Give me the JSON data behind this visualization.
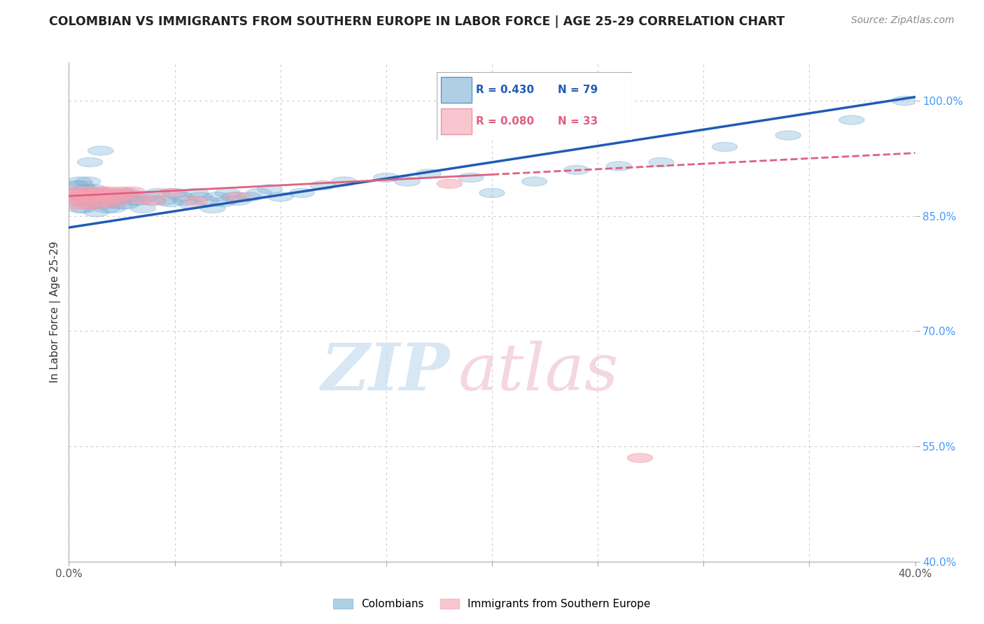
{
  "title": "COLOMBIAN VS IMMIGRANTS FROM SOUTHERN EUROPE IN LABOR FORCE | AGE 25-29 CORRELATION CHART",
  "source": "Source: ZipAtlas.com",
  "ylabel": "In Labor Force | Age 25-29",
  "xlim": [
    0.0,
    0.4
  ],
  "ylim": [
    0.4,
    1.05
  ],
  "xtick_positions": [
    0.0,
    0.05,
    0.1,
    0.15,
    0.2,
    0.25,
    0.3,
    0.35,
    0.4
  ],
  "xticklabels": [
    "0.0%",
    "",
    "",
    "",
    "",
    "",
    "",
    "",
    "40.0%"
  ],
  "ytick_positions": [
    0.4,
    0.55,
    0.7,
    0.85,
    1.0
  ],
  "yticklabels": [
    "40.0%",
    "55.0%",
    "70.0%",
    "85.0%",
    "100.0%"
  ],
  "blue_color": "#7BAFD4",
  "pink_color": "#F4A0B0",
  "blue_line_color": "#1F5BB5",
  "pink_line_color": "#E06080",
  "legend_r_blue": "R = 0.430",
  "legend_n_blue": "N = 79",
  "legend_r_pink": "R = 0.080",
  "legend_n_pink": "N = 33",
  "legend_label_blue": "Colombians",
  "legend_label_pink": "Immigrants from Southern Europe",
  "blue_trend_x": [
    0.0,
    0.4
  ],
  "blue_trend_y": [
    0.835,
    1.005
  ],
  "pink_trend_x": [
    0.0,
    0.4
  ],
  "pink_trend_y": [
    0.876,
    0.932
  ],
  "blue_x": [
    0.002,
    0.003,
    0.004,
    0.005,
    0.005,
    0.006,
    0.006,
    0.007,
    0.007,
    0.008,
    0.008,
    0.009,
    0.01,
    0.01,
    0.011,
    0.012,
    0.012,
    0.013,
    0.013,
    0.014,
    0.015,
    0.015,
    0.016,
    0.017,
    0.018,
    0.019,
    0.02,
    0.021,
    0.022,
    0.023,
    0.024,
    0.025,
    0.026,
    0.027,
    0.028,
    0.03,
    0.031,
    0.033,
    0.035,
    0.037,
    0.04,
    0.042,
    0.045,
    0.048,
    0.05,
    0.053,
    0.055,
    0.058,
    0.06,
    0.062,
    0.065,
    0.068,
    0.07,
    0.073,
    0.075,
    0.078,
    0.08,
    0.085,
    0.09,
    0.095,
    0.1,
    0.11,
    0.12,
    0.13,
    0.15,
    0.16,
    0.17,
    0.19,
    0.2,
    0.22,
    0.24,
    0.26,
    0.28,
    0.31,
    0.34,
    0.37,
    0.395,
    0.01,
    0.015
  ],
  "blue_y": [
    0.88,
    0.89,
    0.87,
    0.895,
    0.86,
    0.87,
    0.89,
    0.875,
    0.86,
    0.885,
    0.87,
    0.895,
    0.865,
    0.88,
    0.87,
    0.865,
    0.885,
    0.87,
    0.855,
    0.88,
    0.87,
    0.875,
    0.865,
    0.88,
    0.86,
    0.875,
    0.87,
    0.86,
    0.87,
    0.875,
    0.865,
    0.88,
    0.875,
    0.865,
    0.88,
    0.87,
    0.875,
    0.87,
    0.86,
    0.875,
    0.87,
    0.88,
    0.87,
    0.868,
    0.88,
    0.875,
    0.87,
    0.865,
    0.88,
    0.875,
    0.87,
    0.86,
    0.875,
    0.868,
    0.88,
    0.875,
    0.87,
    0.875,
    0.88,
    0.885,
    0.875,
    0.88,
    0.89,
    0.895,
    0.9,
    0.895,
    0.905,
    0.9,
    0.88,
    0.895,
    0.91,
    0.915,
    0.92,
    0.94,
    0.955,
    0.975,
    1.0,
    0.92,
    0.935
  ],
  "pink_x": [
    0.001,
    0.002,
    0.003,
    0.004,
    0.005,
    0.006,
    0.007,
    0.008,
    0.009,
    0.01,
    0.011,
    0.012,
    0.013,
    0.014,
    0.015,
    0.016,
    0.017,
    0.018,
    0.019,
    0.02,
    0.021,
    0.022,
    0.023,
    0.025,
    0.027,
    0.03,
    0.033,
    0.04,
    0.048,
    0.06,
    0.08,
    0.18,
    0.27
  ],
  "pink_y": [
    0.882,
    0.87,
    0.878,
    0.865,
    0.875,
    0.882,
    0.878,
    0.865,
    0.875,
    0.882,
    0.878,
    0.865,
    0.875,
    0.878,
    0.882,
    0.868,
    0.875,
    0.88,
    0.882,
    0.872,
    0.878,
    0.868,
    0.875,
    0.882,
    0.878,
    0.882,
    0.872,
    0.87,
    0.88,
    0.87,
    0.875,
    0.892,
    0.535
  ]
}
